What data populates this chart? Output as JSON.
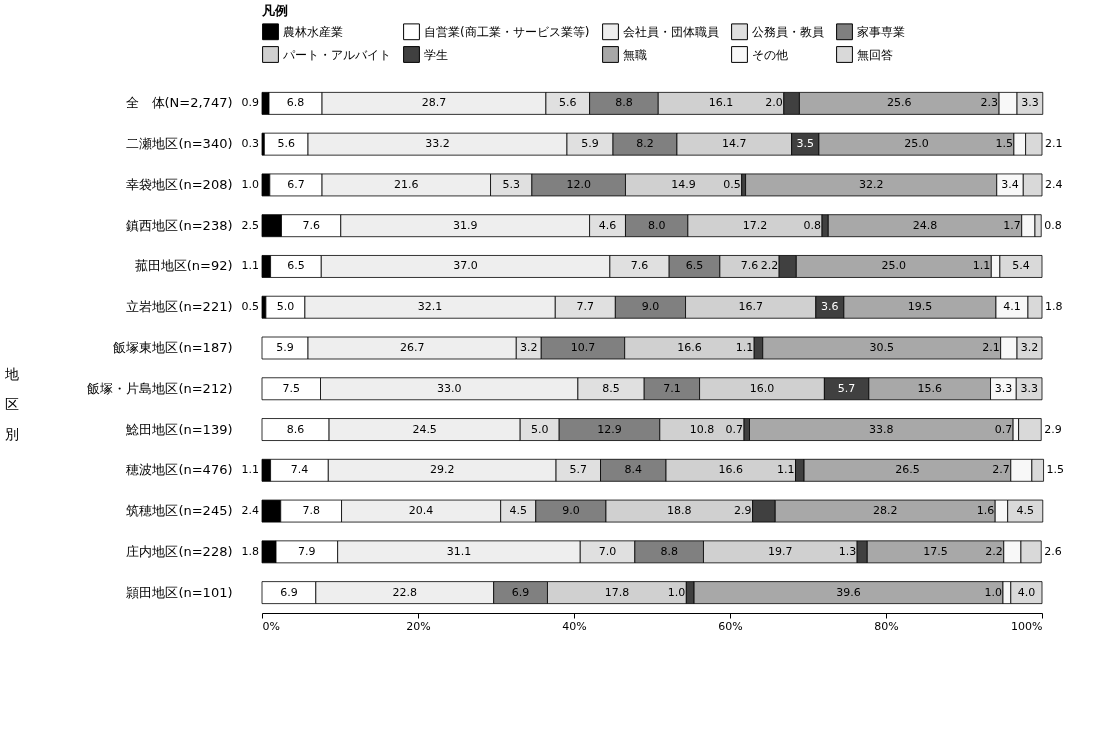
{
  "chart_data": {
    "type": "bar",
    "orientation": "horizontal",
    "stacked": true,
    "legend": "top",
    "legend_title": "凡例",
    "grid": false,
    "categories": [
      "全　体(N=2,747)",
      "二瀬地区(n=340)",
      "幸袋地区(n=208)",
      "鎮西地区(n=238)",
      "菰田地区(n=92)",
      "立岩地区(n=221)",
      "飯塚東地区(n=187)",
      "飯塚・片島地区(n=212)",
      "鯰田地区(n=139)",
      "穂波地区(n=476)",
      "筑穂地区(n=245)",
      "庄内地区(n=228)",
      "頴田地区(n=101)"
    ],
    "xlim": [
      0,
      100
    ],
    "xticks": [
      {
        "value": 0,
        "label": "0%"
      },
      {
        "value": 20,
        "label": "20%"
      },
      {
        "value": 40,
        "label": "40%"
      },
      {
        "value": 60,
        "label": "60%"
      },
      {
        "value": 80,
        "label": "80%"
      },
      {
        "value": 100,
        "label": "100%"
      }
    ],
    "annotations": [
      {
        "text": "地区別"
      }
    ],
    "series": [
      {
        "name": "農林水産業",
        "color": "#000000",
        "values": [
          0.9,
          0.3,
          1.0,
          2.5,
          1.1,
          0.5,
          null,
          null,
          null,
          1.1,
          2.4,
          1.8,
          null
        ],
        "value_labels": [
          "0.9",
          "0.3",
          "1.0",
          "2.5",
          "1.1",
          "0.5",
          null,
          null,
          null,
          "1.1",
          "2.4",
          "1.8",
          null
        ]
      },
      {
        "name": "自営業(商工業・サービス業等)",
        "color": "#ffffff",
        "values": [
          6.8,
          5.6,
          6.7,
          7.6,
          6.5,
          5.0,
          5.9,
          7.5,
          8.6,
          7.4,
          7.8,
          7.9,
          6.9
        ],
        "value_labels": [
          "6.8",
          "5.6",
          "6.7",
          "7.6",
          "6.5",
          "5.0",
          "5.9",
          "7.5",
          "8.6",
          "7.4",
          "7.8",
          "7.9",
          "6.9"
        ]
      },
      {
        "name": "会社員・団体職員",
        "color": "#eeeeee",
        "values": [
          28.7,
          33.2,
          21.6,
          31.9,
          37.0,
          32.1,
          26.7,
          33.0,
          24.5,
          29.2,
          20.4,
          31.1,
          22.8
        ],
        "value_labels": [
          "28.7",
          "33.2",
          "21.6",
          "31.9",
          "37.0",
          "32.1",
          "26.7",
          "33.0",
          "24.5",
          "29.2",
          "20.4",
          "31.1",
          "22.8"
        ]
      },
      {
        "name": "公務員・教員",
        "color": "#e0e0e0",
        "values": [
          5.6,
          5.9,
          5.3,
          4.6,
          7.6,
          7.7,
          3.2,
          8.5,
          5.0,
          5.7,
          4.5,
          7.0,
          null
        ],
        "value_labels": [
          "5.6",
          "5.9",
          "5.3",
          "4.6",
          "7.6",
          "7.7",
          "3.2",
          "8.5",
          "5.0",
          "5.7",
          "4.5",
          "7.0",
          null
        ]
      },
      {
        "name": "家事専業",
        "color": "#808080",
        "values": [
          8.8,
          8.2,
          12.0,
          8.0,
          6.5,
          9.0,
          10.7,
          7.1,
          12.9,
          8.4,
          9.0,
          8.8,
          6.9
        ],
        "value_labels": [
          "8.8",
          "8.2",
          "12.0",
          "8.0",
          "6.5",
          "9.0",
          "10.7",
          "7.1",
          "12.9",
          "8.4",
          "9.0",
          "8.8",
          "6.9"
        ]
      },
      {
        "name": "パート・アルバイト",
        "color": "#d0d0d0",
        "values": [
          16.1,
          14.7,
          14.9,
          17.2,
          7.6,
          16.7,
          16.6,
          16.0,
          10.8,
          16.6,
          18.8,
          19.7,
          17.8
        ],
        "value_labels": [
          "16.1",
          "14.7",
          "14.9",
          "17.2",
          "7.6",
          "16.7",
          "16.6",
          "16.0",
          "10.8",
          "16.6",
          "18.8",
          "19.7",
          "17.8"
        ]
      },
      {
        "name": "学生",
        "color": "#404040",
        "values": [
          2.0,
          3.5,
          0.5,
          0.8,
          2.2,
          3.6,
          1.1,
          5.7,
          0.7,
          1.1,
          2.9,
          1.3,
          1.0
        ],
        "value_labels": [
          "2.0",
          "3.5",
          "0.5",
          "0.8",
          "2.2",
          "3.6",
          "1.1",
          "5.7",
          "0.7",
          "1.1",
          "2.9",
          "1.3",
          "1.0"
        ]
      },
      {
        "name": "無職",
        "color": "#a8a8a8",
        "values": [
          25.6,
          25.0,
          32.2,
          24.8,
          25.0,
          19.5,
          30.5,
          15.6,
          33.8,
          26.5,
          28.2,
          17.5,
          39.6
        ],
        "value_labels": [
          "25.6",
          "25.0",
          "32.2",
          "24.8",
          "25.0",
          "19.5",
          "30.5",
          "15.6",
          "33.8",
          "26.5",
          "28.2",
          "17.5",
          "39.6"
        ]
      },
      {
        "name": "その他",
        "color": "#f8f8f8",
        "values": [
          2.3,
          1.5,
          3.4,
          1.7,
          1.1,
          4.1,
          2.1,
          3.3,
          0.7,
          2.7,
          1.6,
          2.2,
          1.0
        ],
        "value_labels": [
          "2.3",
          "1.5",
          "3.4",
          "1.7",
          "1.1",
          "4.1",
          "2.1",
          "3.3",
          "0.7",
          "2.7",
          "1.6",
          "2.2",
          "1.0"
        ]
      },
      {
        "name": "無回答",
        "color": "#d9d9d9",
        "values": [
          3.3,
          2.1,
          2.4,
          0.8,
          5.4,
          1.8,
          3.2,
          3.3,
          2.9,
          1.5,
          4.5,
          2.6,
          4.0
        ],
        "value_labels": [
          "3.3",
          "2.1",
          "2.4",
          "0.8",
          "5.4",
          "1.8",
          "3.2",
          "3.3",
          "2.9",
          "1.5",
          "4.5",
          "2.6",
          "4.0"
        ]
      }
    ]
  }
}
